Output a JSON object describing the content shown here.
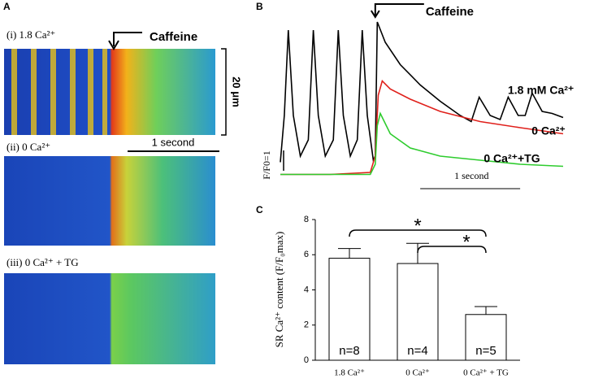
{
  "panel_a": {
    "label": "A",
    "rows": [
      {
        "title": "(i) 1.8 Ca²⁺"
      },
      {
        "title": "(ii) 0 Ca²⁺"
      },
      {
        "title": "(iii) 0 Ca²⁺ + TG"
      }
    ],
    "caffeine": "Caffeine",
    "length_bar": "20 μm",
    "time_bar": "1 second"
  },
  "chart_data": [
    {
      "type": "line",
      "panel_label": "B",
      "annotation": {
        "text": "Caffeine",
        "x": 0.95
      },
      "xlim": [
        0,
        2.83
      ],
      "ylim": [
        0.48,
        8.88
      ],
      "x_scale_bar": {
        "label": "1 second",
        "value": 1
      },
      "y_scale_bar": {
        "label": "F/F0=1",
        "value": 1
      },
      "series": [
        {
          "name": "1.8 mM Ca²⁺",
          "color": "#000000",
          "x": [
            0,
            0.04,
            0.08,
            0.13,
            0.2,
            0.28,
            0.33,
            0.38,
            0.45,
            0.53,
            0.58,
            0.63,
            0.7,
            0.77,
            0.82,
            0.87,
            0.93,
            0.95,
            0.97,
            1.05,
            1.2,
            1.4,
            1.6,
            1.8,
            1.91,
            1.99,
            2.1,
            2.2,
            2.28,
            2.38,
            2.45,
            2.52,
            2.62,
            2.72,
            2.83
          ],
          "values": [
            1.7,
            4,
            8.2,
            4,
            2,
            2.8,
            8.2,
            4,
            2,
            2.8,
            8.2,
            4,
            2,
            2.8,
            8.2,
            4,
            1.8,
            2,
            8.6,
            7.6,
            6.5,
            5.5,
            4.7,
            4,
            3.7,
            4.9,
            4,
            3.8,
            4.9,
            4,
            4,
            5.1,
            4.2,
            4.1,
            3.9
          ]
        },
        {
          "name": "0 Ca²⁺",
          "color": "#e0201b",
          "x": [
            0,
            0.5,
            0.9,
            0.95,
            0.98,
            1.02,
            1.1,
            1.3,
            1.6,
            2,
            2.4,
            2.83
          ],
          "values": [
            1.1,
            1.1,
            1.2,
            2,
            5,
            5.7,
            5.3,
            4.8,
            4.2,
            3.7,
            3.4,
            3.1
          ]
        },
        {
          "name": "0 Ca²⁺+TG",
          "color": "#2ecc2e",
          "x": [
            0,
            0.5,
            0.9,
            0.95,
            0.97,
            1.0,
            1.1,
            1.3,
            1.6,
            2,
            2.4,
            2.83
          ],
          "values": [
            1.1,
            1.1,
            1.1,
            1.6,
            3.5,
            4.1,
            3.1,
            2.4,
            2.0,
            1.8,
            1.6,
            1.5
          ]
        }
      ]
    },
    {
      "type": "bar",
      "panel_label": "C",
      "y_label": "SR Ca²⁺ content (F/F₀max)",
      "categories": [
        "1.8 Ca²⁺",
        "0 Ca²⁺",
        "0 Ca²⁺ + TG"
      ],
      "values": [
        5.8,
        5.5,
        2.6
      ],
      "errors": [
        0.55,
        1.15,
        0.45
      ],
      "annotations": [
        "n=8",
        "n=4",
        "n=5"
      ],
      "significance_labels": [
        "*",
        "*"
      ],
      "ylim": [
        0,
        8
      ],
      "yticks": [
        0,
        2,
        4,
        6,
        8
      ],
      "color": "#ffffff"
    }
  ]
}
